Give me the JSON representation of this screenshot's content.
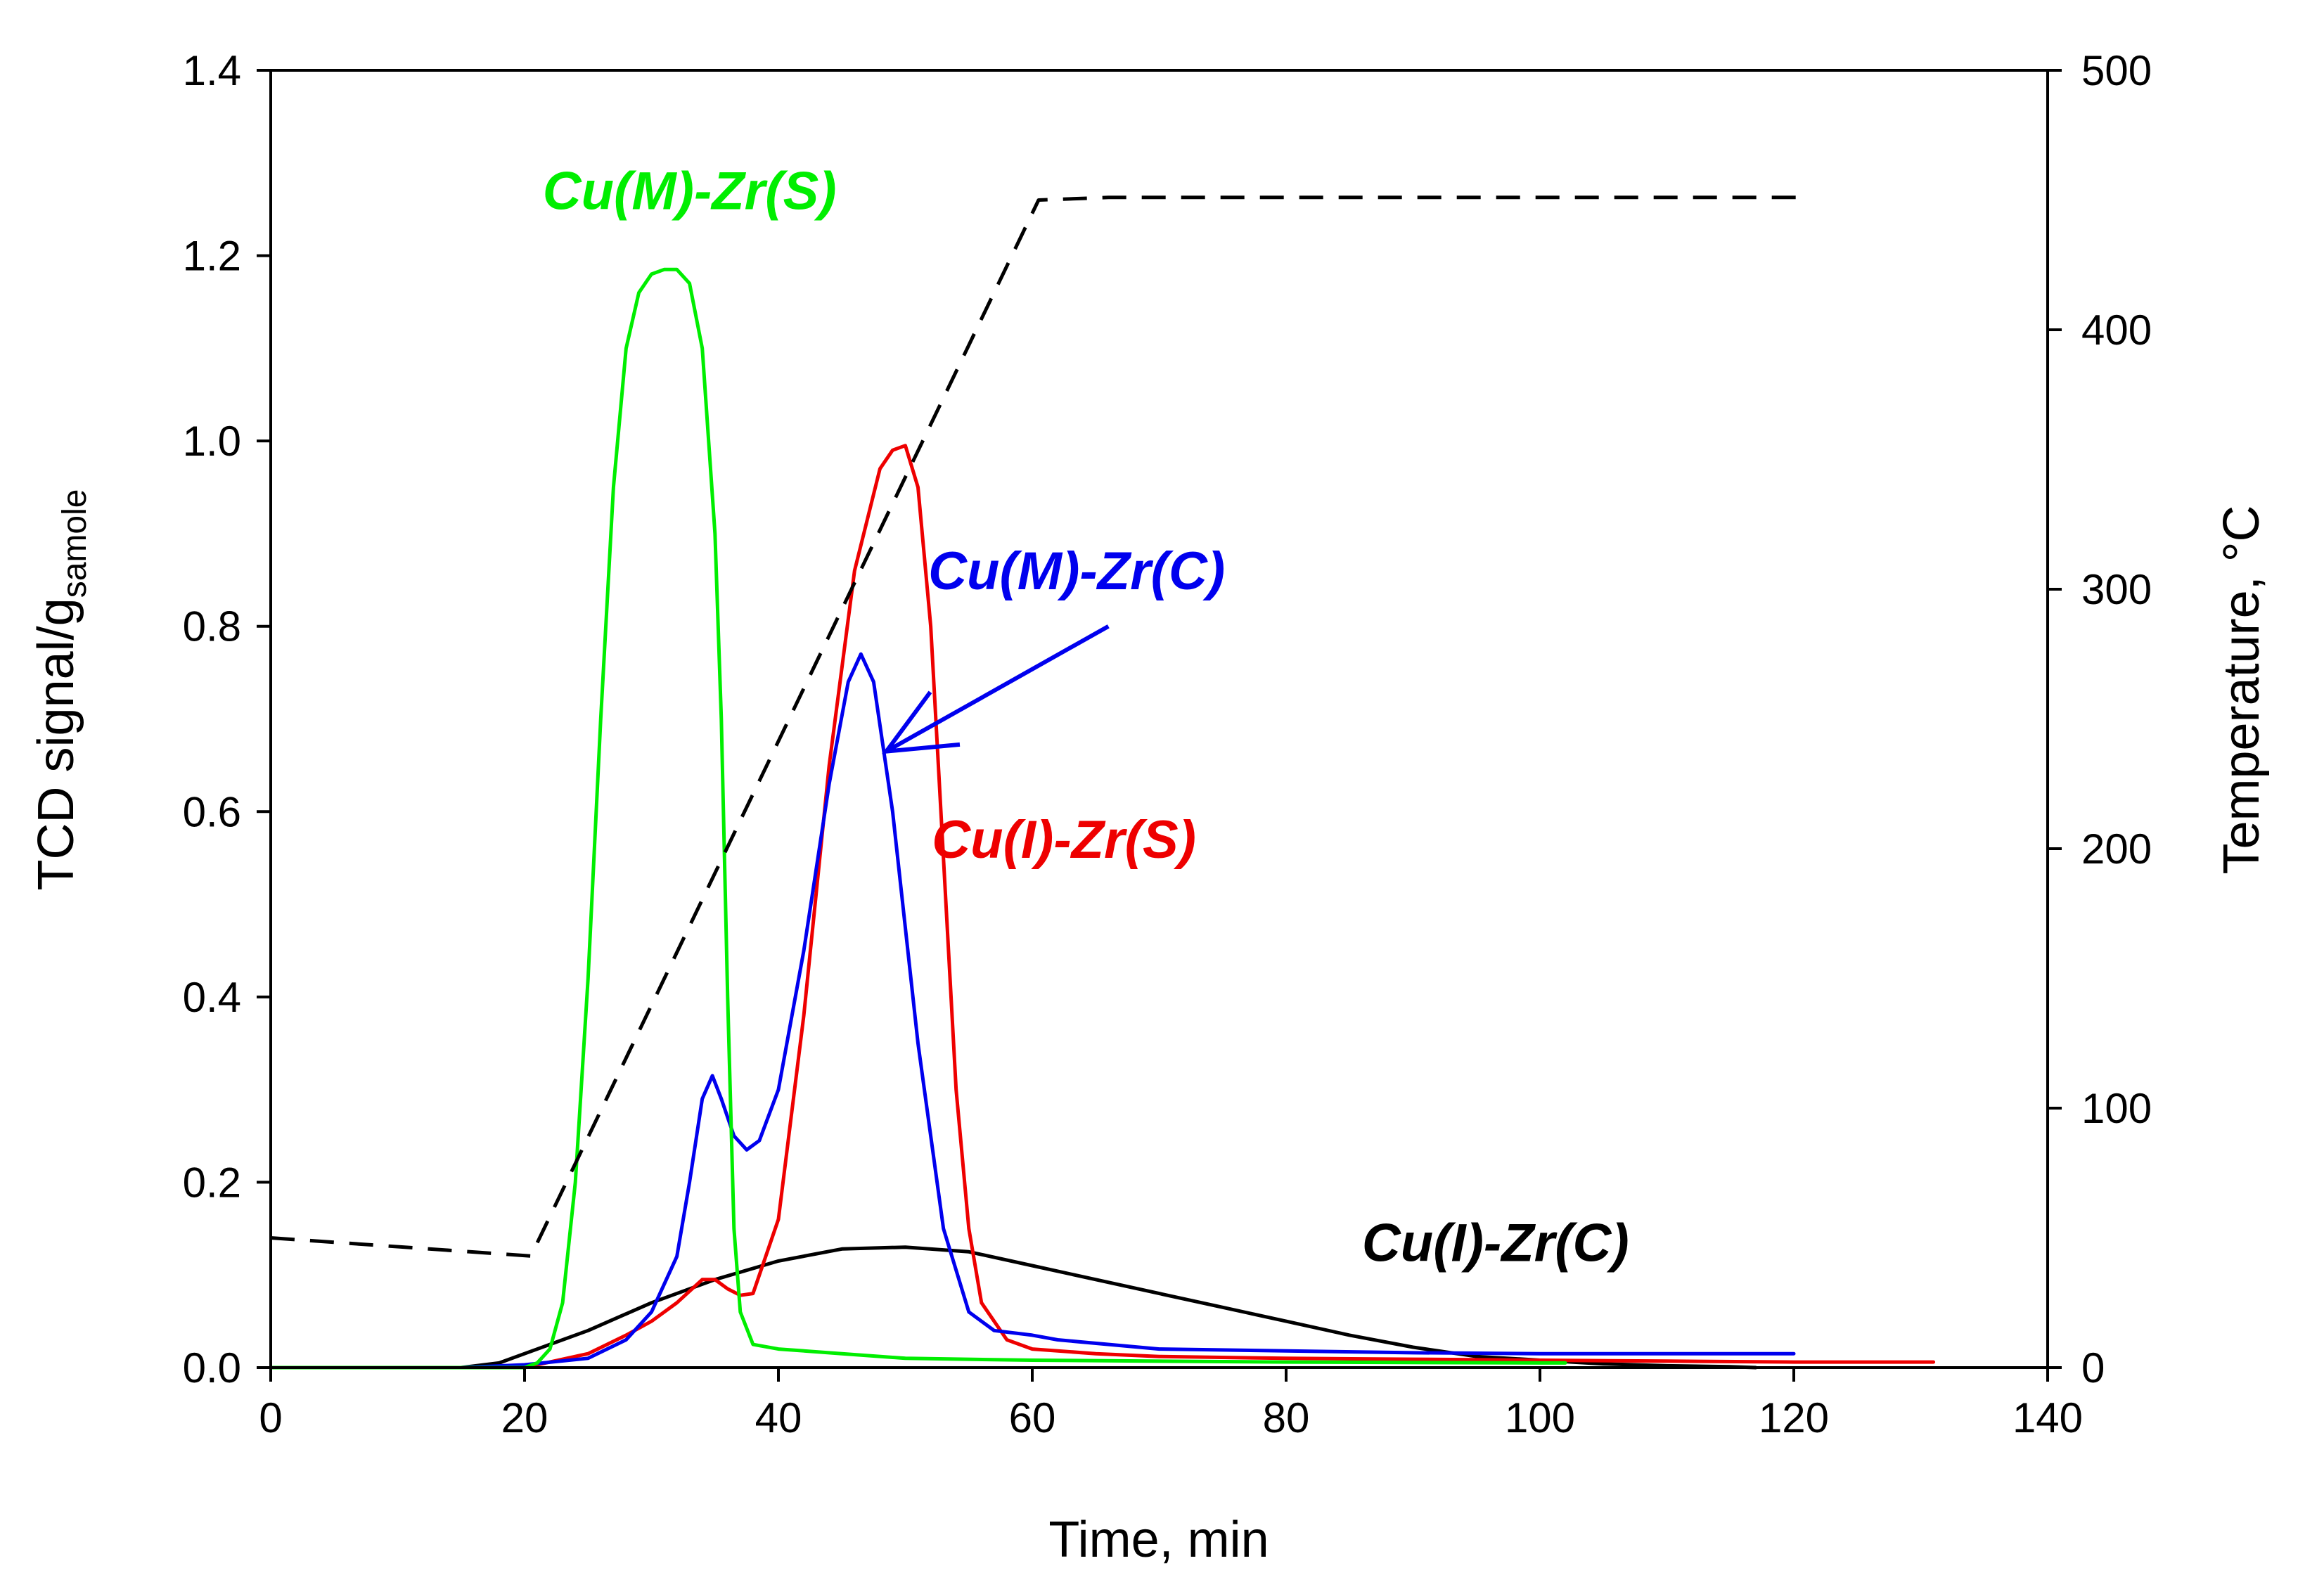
{
  "chart_data": {
    "type": "line",
    "title": "",
    "xlabel": "Time, min",
    "ylabel": "TCD signal/g",
    "ylabel_sub": "samole",
    "y2label": "Temperature, °C",
    "xlim": [
      0,
      140
    ],
    "ylim": [
      0,
      1.4
    ],
    "y2lim": [
      0,
      500
    ],
    "grid": false,
    "x_ticks": [
      "0",
      "20",
      "40",
      "60",
      "80",
      "100",
      "120",
      "140"
    ],
    "y_ticks": [
      "0.0",
      "0.2",
      "0.4",
      "0.6",
      "0.8",
      "1.0",
      "1.2",
      "1.4"
    ],
    "y2_ticks": [
      "0",
      "100",
      "200",
      "300",
      "400",
      "500"
    ],
    "series": [
      {
        "name": "Cu(M)-Zr(S)",
        "color": "#00ee00",
        "axis": "left",
        "x": [
          0,
          20,
          21,
          22,
          23,
          24,
          25,
          26,
          27,
          28,
          29,
          30,
          31,
          32,
          33,
          34,
          35,
          35.5,
          36,
          36.5,
          37,
          38,
          40,
          45,
          50,
          60,
          80,
          100,
          102
        ],
        "y": [
          0,
          0,
          0.005,
          0.02,
          0.07,
          0.2,
          0.42,
          0.7,
          0.95,
          1.1,
          1.16,
          1.18,
          1.185,
          1.185,
          1.17,
          1.1,
          0.9,
          0.7,
          0.4,
          0.15,
          0.06,
          0.025,
          0.02,
          0.015,
          0.01,
          0.008,
          0.006,
          0.005,
          0.005
        ]
      },
      {
        "name": "Cu(M)-Zr(C)",
        "color": "#0000ee",
        "axis": "left",
        "x": [
          0,
          15,
          20,
          25,
          28,
          30,
          32,
          33,
          34,
          34.8,
          35.5,
          36.5,
          37.5,
          38.5,
          40,
          42,
          44,
          45.5,
          46.5,
          47.5,
          49,
          51,
          53,
          55,
          57,
          60,
          62,
          70,
          80,
          90,
          100,
          110,
          120
        ],
        "y": [
          0,
          0,
          0.003,
          0.01,
          0.03,
          0.06,
          0.12,
          0.2,
          0.29,
          0.315,
          0.29,
          0.25,
          0.235,
          0.245,
          0.3,
          0.45,
          0.63,
          0.74,
          0.77,
          0.74,
          0.6,
          0.35,
          0.15,
          0.06,
          0.04,
          0.035,
          0.03,
          0.02,
          0.018,
          0.016,
          0.015,
          0.015,
          0.015
        ]
      },
      {
        "name": "Cu(I)-Zr(S)",
        "color": "#ee0000",
        "axis": "left",
        "x": [
          0,
          20,
          25,
          28,
          30,
          32,
          34,
          35,
          36,
          37,
          38,
          40,
          42,
          44,
          46,
          48,
          49,
          50,
          51,
          52,
          53,
          54,
          55,
          56,
          58,
          60,
          65,
          70,
          80,
          90,
          100,
          110,
          120,
          131
        ],
        "y": [
          0,
          0,
          0.015,
          0.035,
          0.05,
          0.07,
          0.095,
          0.095,
          0.085,
          0.078,
          0.08,
          0.16,
          0.38,
          0.65,
          0.86,
          0.97,
          0.99,
          0.995,
          0.95,
          0.8,
          0.55,
          0.3,
          0.15,
          0.07,
          0.03,
          0.02,
          0.015,
          0.012,
          0.01,
          0.009,
          0.008,
          0.007,
          0.006,
          0.006
        ]
      },
      {
        "name": "Cu(I)-Zr(C)",
        "color": "#000000",
        "axis": "left",
        "x": [
          0,
          15,
          18,
          20,
          25,
          30,
          35,
          40,
          45,
          50,
          55,
          60,
          65,
          70,
          75,
          80,
          85,
          90,
          95,
          100,
          105,
          110,
          115,
          117
        ],
        "y": [
          0,
          0,
          0.005,
          0.015,
          0.04,
          0.07,
          0.095,
          0.115,
          0.128,
          0.13,
          0.125,
          0.11,
          0.095,
          0.08,
          0.065,
          0.05,
          0.035,
          0.022,
          0.012,
          0.008,
          0.004,
          0.002,
          0.001,
          0
        ]
      },
      {
        "name": "Temperature",
        "color": "#000000",
        "axis": "right",
        "dashed": true,
        "x": [
          0,
          20.5,
          60.5,
          66,
          90,
          120.5
        ],
        "y": [
          50,
          43,
          450,
          451,
          451,
          451
        ]
      }
    ],
    "annotations": [
      {
        "text": "Cu(M)-Zr(S)",
        "color": "#00ee00",
        "x": 33,
        "y": 1.25,
        "series": "Cu(M)-Zr(S)"
      },
      {
        "text": "Cu(M)-Zr(C)",
        "color": "#0000ee",
        "x": 63.5,
        "y": 0.84,
        "series": "Cu(M)-Zr(C)",
        "arrow_from": [
          66,
          0.8
        ],
        "arrow_to": [
          48.5,
          0.665
        ]
      },
      {
        "text": "Cu(I)-Zr(S)",
        "color": "#ee0000",
        "x": 62.5,
        "y": 0.55,
        "series": "Cu(I)-Zr(S)"
      },
      {
        "text": "Cu(I)-Zr(C)",
        "color": "#000000",
        "x": 96.5,
        "y": 0.115,
        "series": "Cu(I)-Zr(C)"
      }
    ]
  }
}
